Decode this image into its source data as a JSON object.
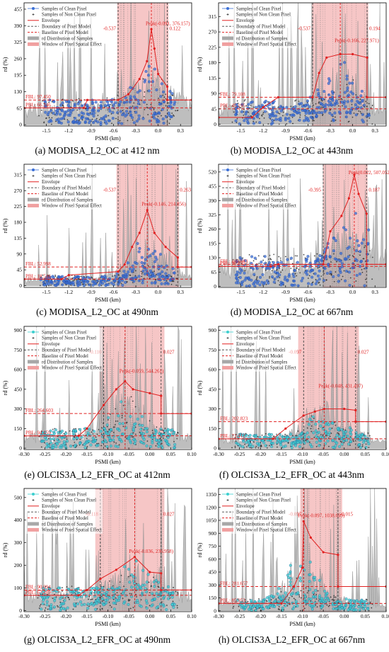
{
  "figure": {
    "legend_entries": [
      "Samples of Clean Pixel",
      "Samples of Non Clean Pixel",
      "Envelope",
      "Boundary of Pixel Model",
      "Baseline of Pixel Model",
      "rd Distribution of Samples",
      "Window of Pixel Spatial Effect"
    ]
  },
  "colors": {
    "modis_clean": "#3b6fd6",
    "olci_clean": "#3ccfcf",
    "non_clean": "#2a2a2a",
    "envelope": "#e02020",
    "window": "#f0a0a0",
    "distribution": "#a8a8a8"
  },
  "chart_data": [
    {
      "type": "scatter",
      "panel": "a",
      "caption": "(a) MODISA_L2_OC at 412 nm",
      "xlabel": "PSMI (km)",
      "ylabel": "rd (%)",
      "xlim": [
        -1.8,
        0.45
      ],
      "ylim": [
        -5,
        480
      ],
      "xticks": [
        -1.5,
        -1.2,
        -0.9,
        -0.6,
        -0.3,
        0.0,
        0.3
      ],
      "xtick_labels": [
        "-1.5",
        "-1.2",
        "-0.9",
        "-0.6",
        "-0.3",
        "0.0",
        "0.3"
      ],
      "yticks": [
        0,
        65,
        130,
        195,
        260,
        325,
        390,
        455
      ],
      "ytick_labels": [
        "0",
        "65",
        "130",
        "195",
        "260",
        "325",
        "390",
        "455"
      ],
      "sensor": "MODIS",
      "fbl": 97.45,
      "pbl": 66.346,
      "fbl_label": "FBL: 97.450",
      "pbl_label": "PBL: 66.346",
      "peak": [
        -0.091,
        376.157
      ],
      "peak_label": "Peak(-0.091, 376.157)",
      "boundary_left": -0.537,
      "boundary_right": 0.122,
      "boundary_left_label": "-0.537",
      "boundary_right_label": "0.122",
      "window": [
        -0.55,
        0.14
      ],
      "envelope": [
        [
          -1.8,
          66.3
        ],
        [
          -1.0,
          66.3
        ],
        [
          -0.95,
          97.45
        ],
        [
          -0.537,
          97.45
        ],
        [
          -0.4,
          120
        ],
        [
          -0.25,
          180
        ],
        [
          -0.15,
          250
        ],
        [
          -0.091,
          376.157
        ],
        [
          -0.05,
          300
        ],
        [
          0.0,
          200
        ],
        [
          0.122,
          150
        ],
        [
          0.122,
          97.45
        ],
        [
          0.45,
          97.45
        ]
      ]
    },
    {
      "type": "scatter",
      "panel": "b",
      "caption": "(b) MODISA_L2_OC at 443nm",
      "xlabel": "PSMI (km)",
      "ylabel": "rd (%)",
      "xlim": [
        -1.8,
        0.45
      ],
      "ylim": [
        -5,
        355
      ],
      "xticks": [
        -1.5,
        -1.2,
        -0.9,
        -0.6,
        -0.3,
        0.0,
        0.3
      ],
      "xtick_labels": [
        "-1.5",
        "-1.2",
        "-0.9",
        "-0.6",
        "-0.3",
        "0.0",
        "0.3"
      ],
      "yticks": [
        0,
        45,
        90,
        135,
        180,
        225,
        270,
        315
      ],
      "ytick_labels": [
        "0",
        "45",
        "90",
        "135",
        "180",
        "225",
        "270",
        "315"
      ],
      "sensor": "MODIS",
      "fbl": 79.108,
      "pbl": 45.195,
      "fbl_label": "FBL: 79.108",
      "pbl_label": "PBL: 45.195",
      "peak": [
        -0.166,
        227.971
      ],
      "peak_label": "Peak(-0.166, 227.971)",
      "boundary_left": -0.537,
      "boundary_right": 0.194,
      "boundary_left_label": "-0.537",
      "boundary_right_label": "0.194",
      "window": [
        -0.55,
        0.21
      ],
      "envelope": [
        [
          -1.8,
          20
        ],
        [
          -1.35,
          20
        ],
        [
          -1.2,
          50
        ],
        [
          -1.0,
          79
        ],
        [
          -0.537,
          79
        ],
        [
          -0.45,
          150
        ],
        [
          -0.35,
          195
        ],
        [
          -0.166,
          205
        ],
        [
          0.0,
          205
        ],
        [
          0.194,
          195
        ],
        [
          0.194,
          79.1
        ],
        [
          0.45,
          79.1
        ]
      ]
    },
    {
      "type": "scatter",
      "panel": "c",
      "caption": "(c) MODISA_L2_OC at 490nm",
      "xlabel": "PSMI (km)",
      "ylabel": "rd (%)",
      "xlim": [
        -1.8,
        0.45
      ],
      "ylim": [
        -5,
        345
      ],
      "xticks": [
        -1.5,
        -1.2,
        -0.9,
        -0.6,
        -0.3,
        0.0,
        0.3
      ],
      "xtick_labels": [
        "-1.5",
        "-1.2",
        "-0.9",
        "-0.6",
        "-0.3",
        "0.0",
        "0.3"
      ],
      "yticks": [
        0,
        45,
        90,
        135,
        180,
        225,
        270,
        315
      ],
      "ytick_labels": [
        "0",
        "45",
        "90",
        "135",
        "180",
        "225",
        "270",
        "315"
      ],
      "sensor": "MODIS",
      "fbl": 52.998,
      "pbl": 18.544,
      "fbl_label": "FBL: 52.998",
      "pbl_label": "PBL: 18.544",
      "peak": [
        -0.146,
        214.856
      ],
      "peak_label": "Peak(-0.146, 214.856)",
      "boundary_left": -0.537,
      "boundary_right": 0.263,
      "boundary_left_label": "-0.537",
      "boundary_right_label": "0.263",
      "window": [
        -0.56,
        0.28
      ],
      "envelope": [
        [
          -1.8,
          18.5
        ],
        [
          -1.3,
          18.5
        ],
        [
          -1.2,
          30
        ],
        [
          -0.537,
          40
        ],
        [
          -0.45,
          60
        ],
        [
          -0.35,
          110
        ],
        [
          -0.25,
          150
        ],
        [
          -0.146,
          214.856
        ],
        [
          -0.05,
          150
        ],
        [
          0.1,
          110
        ],
        [
          0.263,
          80
        ],
        [
          0.263,
          53
        ],
        [
          0.45,
          53
        ]
      ]
    },
    {
      "type": "scatter",
      "panel": "d",
      "caption": "(d) MODISA_L2_OC at 667nm",
      "xlabel": "PSMI (km)",
      "ylabel": "rd (%)",
      "xlim": [
        -1.8,
        0.45
      ],
      "ylim": [
        -5,
        555
      ],
      "xticks": [
        -1.5,
        -1.2,
        -0.9,
        -0.6,
        -0.3,
        0.0,
        0.3
      ],
      "xtick_labels": [
        "-1.5",
        "-1.2",
        "-0.9",
        "-0.6",
        "-0.3",
        "0.0",
        "0.3"
      ],
      "yticks": [
        0,
        65,
        130,
        195,
        260,
        325,
        390,
        455,
        520
      ],
      "ytick_labels": [
        "0",
        "65",
        "130",
        "195",
        "260",
        "325",
        "390",
        "455",
        "520"
      ],
      "sensor": "MODIS",
      "fbl": 100.083,
      "pbl": 90.835,
      "fbl_label": "FBL: 100.083",
      "pbl_label": "PBL: 90.835",
      "peak": [
        0.022,
        507.052
      ],
      "peak_label": "Peak(0.022, 507.052)",
      "boundary_left": -0.395,
      "boundary_right": 0.187,
      "boundary_left_label": "-0.395",
      "boundary_right_label": "0.187",
      "window": [
        -0.4,
        0.2
      ],
      "envelope": [
        [
          -1.8,
          90.8
        ],
        [
          -1.1,
          90.8
        ],
        [
          -1.0,
          100
        ],
        [
          -0.395,
          100
        ],
        [
          -0.3,
          250
        ],
        [
          -0.15,
          320
        ],
        [
          -0.05,
          400
        ],
        [
          0.022,
          507.052
        ],
        [
          0.08,
          420
        ],
        [
          0.187,
          330
        ],
        [
          0.187,
          100
        ],
        [
          0.45,
          100
        ]
      ]
    },
    {
      "type": "scatter",
      "panel": "e",
      "caption": "(e) OLCIS3A_L2_EFR_OC at 412nm",
      "xlabel": "PSMI (km)",
      "ylabel": "rd (%)",
      "xlim": [
        -0.3,
        0.1
      ],
      "ylim": [
        -10,
        930
      ],
      "xticks": [
        -0.3,
        -0.25,
        -0.2,
        -0.15,
        -0.1,
        -0.05,
        0.0,
        0.05,
        0.1
      ],
      "xtick_labels": [
        "-0.30",
        "-0.25",
        "-0.20",
        "-0.15",
        "-0.10",
        "-0.05",
        "0.00",
        "0.05",
        "0.10"
      ],
      "yticks": [
        0,
        150,
        300,
        450,
        600,
        750,
        900
      ],
      "ytick_labels": [
        "0",
        "150",
        "300",
        "450",
        "600",
        "750",
        "900"
      ],
      "sensor": "OLCI",
      "fbl": 264.603,
      "pbl": 94.459,
      "fbl_label": "FBL: 264.603",
      "pbl_label": "PBL: 94.459",
      "peak": [
        -0.059,
        544.261
      ],
      "peak_label": "Peak(-0.059, 544.261)",
      "boundary_left": -0.11,
      "boundary_right": 0.027,
      "boundary_left_label": "-0.110",
      "boundary_right_label": "0.027",
      "window": [
        -0.12,
        0.035
      ],
      "envelope": [
        [
          -0.3,
          94.5
        ],
        [
          -0.17,
          94.5
        ],
        [
          -0.15,
          150
        ],
        [
          -0.11,
          330
        ],
        [
          -0.08,
          450
        ],
        [
          -0.059,
          510
        ],
        [
          -0.04,
          450
        ],
        [
          0.0,
          420
        ],
        [
          0.027,
          400
        ],
        [
          0.027,
          264.6
        ],
        [
          0.1,
          264.6
        ]
      ]
    },
    {
      "type": "scatter",
      "panel": "f",
      "caption": "(f) OLCIS3A_L2_EFR_OC at 443nm",
      "xlabel": "PSMI (km)",
      "ylabel": "rd (%)",
      "xlim": [
        -0.3,
        0.1
      ],
      "ylim": [
        -10,
        930
      ],
      "xticks": [
        -0.3,
        -0.25,
        -0.2,
        -0.15,
        -0.1,
        -0.05,
        0.0,
        0.05,
        0.1
      ],
      "xtick_labels": [
        "-0.30",
        "-0.25",
        "-0.20",
        "-0.15",
        "-0.10",
        "-0.05",
        "0.00",
        "0.05",
        "0.10"
      ],
      "yticks": [
        0,
        150,
        300,
        450,
        600,
        750,
        900
      ],
      "ytick_labels": [
        "0",
        "150",
        "300",
        "450",
        "600",
        "750",
        "900"
      ],
      "sensor": "OLCI",
      "fbl": 202.823,
      "pbl": 71.412,
      "fbl_label": "FBL: 202.823",
      "pbl_label": "PBL: 71.412",
      "peak": [
        -0.048,
        431.497
      ],
      "peak_label": "Peak(-0.048, 431.497)",
      "boundary_left": -0.097,
      "boundary_right": 0.027,
      "boundary_left_label": "-0.097",
      "boundary_right_label": "0.027",
      "window": [
        -0.11,
        0.035
      ],
      "envelope": [
        [
          -0.3,
          71.4
        ],
        [
          -0.17,
          71.4
        ],
        [
          -0.14,
          150
        ],
        [
          -0.097,
          250
        ],
        [
          -0.07,
          280
        ],
        [
          -0.048,
          300
        ],
        [
          0.0,
          300
        ],
        [
          0.027,
          290
        ],
        [
          0.027,
          202.8
        ],
        [
          0.1,
          202.8
        ]
      ]
    },
    {
      "type": "scatter",
      "panel": "g",
      "caption": "(g) OLCIS3A_L2_EFR_OC at 490nm",
      "xlabel": "PSMI (km)",
      "ylabel": "rd (%)",
      "xlim": [
        -0.3,
        0.1
      ],
      "ylim": [
        -5,
        540
      ],
      "xticks": [
        -0.3,
        -0.25,
        -0.2,
        -0.15,
        -0.1,
        -0.05,
        0.0,
        0.05,
        0.1
      ],
      "xtick_labels": [
        "-0.30",
        "-0.25",
        "-0.20",
        "-0.15",
        "-0.10",
        "-0.05",
        "0.00",
        "0.05",
        "0.10"
      ],
      "yticks": [
        0,
        100,
        200,
        300,
        400,
        500
      ],
      "ytick_labels": [
        "0",
        "100",
        "200",
        "300",
        "400",
        "500"
      ],
      "sensor": "OLCI",
      "fbl": 90.694,
      "pbl": 67.289,
      "fbl_label": "FBL: 90.694",
      "pbl_label": "PBL: 67.289",
      "peak": [
        -0.036,
        236.958
      ],
      "peak_label": "Peak(-0.036, 236.958)",
      "boundary_left": -0.118,
      "boundary_right": 0.027,
      "boundary_left_label": "-0.118",
      "boundary_right_label": "0.027",
      "window": [
        -0.13,
        0.035
      ],
      "envelope": [
        [
          -0.3,
          67.3
        ],
        [
          -0.17,
          67.3
        ],
        [
          -0.15,
          90.7
        ],
        [
          -0.118,
          140
        ],
        [
          -0.08,
          180
        ],
        [
          -0.036,
          236.958
        ],
        [
          0.0,
          170
        ],
        [
          0.027,
          165
        ],
        [
          0.027,
          90.7
        ],
        [
          0.1,
          90.7
        ]
      ]
    },
    {
      "type": "scatter",
      "panel": "h",
      "caption": "(h) OLCIS3A_L2_EFR_OC at 667nm",
      "xlabel": "PSMI (km)",
      "ylabel": "rd (%)",
      "xlim": [
        -0.3,
        0.1
      ],
      "ylim": [
        -10,
        1420
      ],
      "xticks": [
        -0.3,
        -0.25,
        -0.2,
        -0.15,
        -0.1,
        -0.05,
        0.0,
        0.05,
        0.1
      ],
      "xtick_labels": [
        "-0.30",
        "-0.25",
        "-0.20",
        "-0.15",
        "-0.10",
        "-0.05",
        "0.00",
        "0.05",
        "0.10"
      ],
      "yticks": [
        0,
        150,
        300,
        450,
        600,
        750,
        900,
        1050,
        1200,
        1350
      ],
      "ytick_labels": [
        "0",
        "150",
        "300",
        "450",
        "600",
        "750",
        "900",
        "1050",
        "1200",
        "1350"
      ],
      "sensor": "OLCI",
      "fbl": 281.657,
      "pbl": 85.953,
      "fbl_label": "FBL: 281.657",
      "pbl_label": "PBL: 85.953",
      "peak": [
        -0.097,
        1038.699
      ],
      "peak_label": "Peak(-0.097, 1038.699)",
      "boundary_left": -0.097,
      "boundary_right": -0.015,
      "boundary_left_label": "-0.097",
      "boundary_right_label": "-0.015",
      "window": [
        -0.105,
        -0.005
      ],
      "envelope": [
        [
          -0.3,
          86
        ],
        [
          -0.15,
          86
        ],
        [
          -0.12,
          281.7
        ],
        [
          -0.1,
          500
        ],
        [
          -0.097,
          1038.699
        ],
        [
          -0.08,
          850
        ],
        [
          -0.05,
          680
        ],
        [
          -0.015,
          650
        ],
        [
          -0.015,
          281.7
        ],
        [
          0.1,
          281.7
        ]
      ]
    }
  ]
}
